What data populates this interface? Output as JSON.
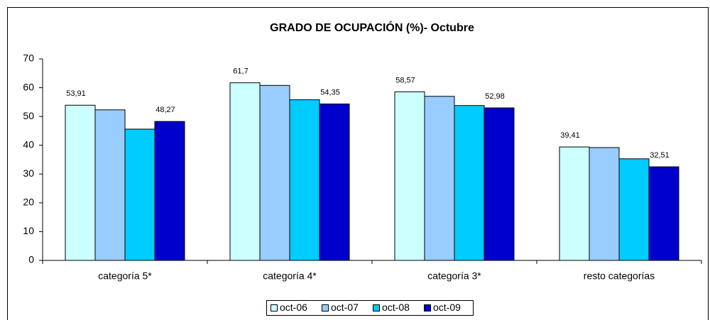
{
  "chart_data": {
    "type": "bar",
    "title": "GRADO DE OCUPACIÓN (%)- Octubre",
    "categories": [
      "categoría 5*",
      "categoría 4*",
      "categoría 3*",
      "resto categorías"
    ],
    "series": [
      {
        "name": "oct-06",
        "color": "#ccffff",
        "values": [
          53.91,
          61.7,
          58.57,
          39.41
        ],
        "value_labels": [
          "53,91",
          "61,7",
          "58,57",
          "39,41"
        ]
      },
      {
        "name": "oct-07",
        "color": "#99ccff",
        "values": [
          52.3,
          60.8,
          57.0,
          39.2
        ]
      },
      {
        "name": "oct-08",
        "color": "#00ccff",
        "values": [
          45.6,
          55.8,
          53.8,
          35.3
        ]
      },
      {
        "name": "oct-09",
        "color": "#0000cc",
        "values": [
          48.27,
          54.35,
          52.98,
          32.51
        ],
        "value_labels": [
          "48,27",
          "54,35",
          "52,98",
          "32,51"
        ]
      }
    ],
    "ylim": [
      0,
      70
    ],
    "yticks": [
      0,
      10,
      20,
      30,
      40,
      50,
      60,
      70
    ],
    "grid": false,
    "legend": "bottom"
  }
}
